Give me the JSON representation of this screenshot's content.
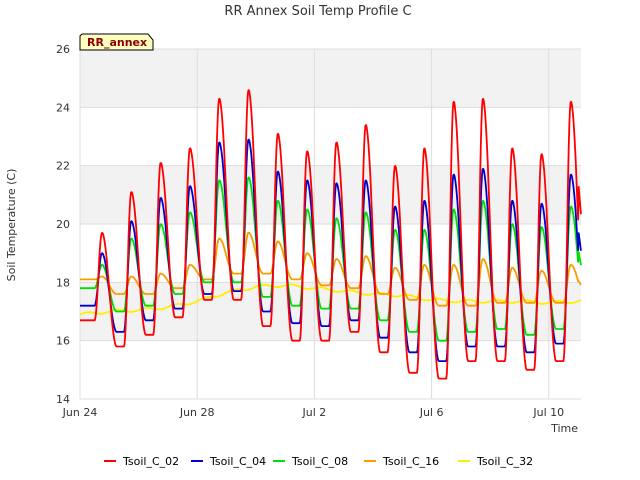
{
  "chart_data": {
    "type": "line",
    "title": "RR Annex Soil Temp Profile C",
    "xlabel": "Time",
    "ylabel": "Soil Temperature (C)",
    "site_label": "RR_annex",
    "ylim": [
      14,
      26
    ],
    "y_ticks": [
      "14",
      "16",
      "18",
      "20",
      "22",
      "24",
      "26"
    ],
    "x_range_days": [
      0,
      17.1
    ],
    "x_ticks": [
      {
        "day": 0,
        "label": "Jun 24"
      },
      {
        "day": 4,
        "label": "Jun 28"
      },
      {
        "day": 8,
        "label": "Jul 2"
      },
      {
        "day": 12,
        "label": "Jul 6"
      },
      {
        "day": 16,
        "label": "Jul 10"
      }
    ],
    "grid": true,
    "legend_position": "bottom",
    "series": [
      {
        "name": "Tsoil_C_02",
        "color": "#ff0000",
        "start_value": 16.7,
        "end_value": 22.9,
        "daily_min": [
          17.0,
          15.8,
          16.2,
          16.8,
          17.4,
          17.4,
          16.5,
          16.0,
          16.0,
          16.3,
          15.6,
          14.9,
          14.7,
          15.3,
          15.3,
          15.0,
          15.3,
          16.1
        ],
        "daily_max": [
          19.7,
          21.1,
          22.1,
          22.6,
          24.3,
          24.6,
          23.1,
          22.5,
          22.8,
          23.4,
          22.0,
          22.6,
          24.2,
          24.3,
          22.6,
          22.4,
          24.2,
          22.9
        ]
      },
      {
        "name": "Tsoil_C_04",
        "color": "#0000cc",
        "start_value": 17.2,
        "end_value": 20.6,
        "daily_min": [
          17.3,
          16.3,
          16.7,
          17.1,
          17.6,
          17.7,
          17.0,
          16.6,
          16.5,
          16.7,
          16.1,
          15.6,
          15.3,
          15.8,
          15.8,
          15.6,
          15.9,
          16.5
        ],
        "daily_max": [
          19.0,
          20.1,
          20.9,
          21.3,
          22.8,
          22.9,
          21.8,
          21.5,
          21.4,
          21.5,
          20.6,
          20.8,
          21.7,
          21.9,
          20.8,
          20.7,
          21.7,
          20.6
        ]
      },
      {
        "name": "Tsoil_C_08",
        "color": "#00dd00",
        "start_value": 17.8,
        "end_value": 19.6,
        "daily_min": [
          17.5,
          17.0,
          17.2,
          17.6,
          18.0,
          18.0,
          17.5,
          17.2,
          17.1,
          17.1,
          16.7,
          16.3,
          16.0,
          16.3,
          16.4,
          16.2,
          16.4,
          16.8
        ],
        "daily_max": [
          18.6,
          19.5,
          20.0,
          20.4,
          21.5,
          21.6,
          20.8,
          20.5,
          20.2,
          20.4,
          19.8,
          19.8,
          20.5,
          20.8,
          20.0,
          19.9,
          20.6,
          19.7
        ]
      },
      {
        "name": "Tsoil_C_16",
        "color": "#ff9900",
        "start_value": 18.1,
        "end_value": 18.1,
        "daily_min": [
          17.9,
          17.6,
          17.6,
          17.8,
          18.1,
          18.3,
          18.3,
          18.1,
          17.9,
          17.8,
          17.6,
          17.4,
          17.2,
          17.2,
          17.3,
          17.3,
          17.3,
          17.5
        ],
        "daily_max": [
          18.2,
          18.2,
          18.3,
          18.6,
          19.5,
          19.7,
          19.4,
          19.0,
          18.8,
          18.9,
          18.5,
          18.6,
          18.6,
          18.8,
          18.5,
          18.4,
          18.6,
          18.5
        ]
      },
      {
        "name": "Tsoil_C_32",
        "color": "#ffee00",
        "start_value": 16.85,
        "end_value": 17.45,
        "levels": [
          16.9,
          17.0,
          17.05,
          17.15,
          17.35,
          17.65,
          17.85,
          17.9,
          17.8,
          17.7,
          17.6,
          17.55,
          17.4,
          17.35,
          17.35,
          17.35,
          17.3,
          17.35,
          17.45
        ]
      }
    ]
  }
}
